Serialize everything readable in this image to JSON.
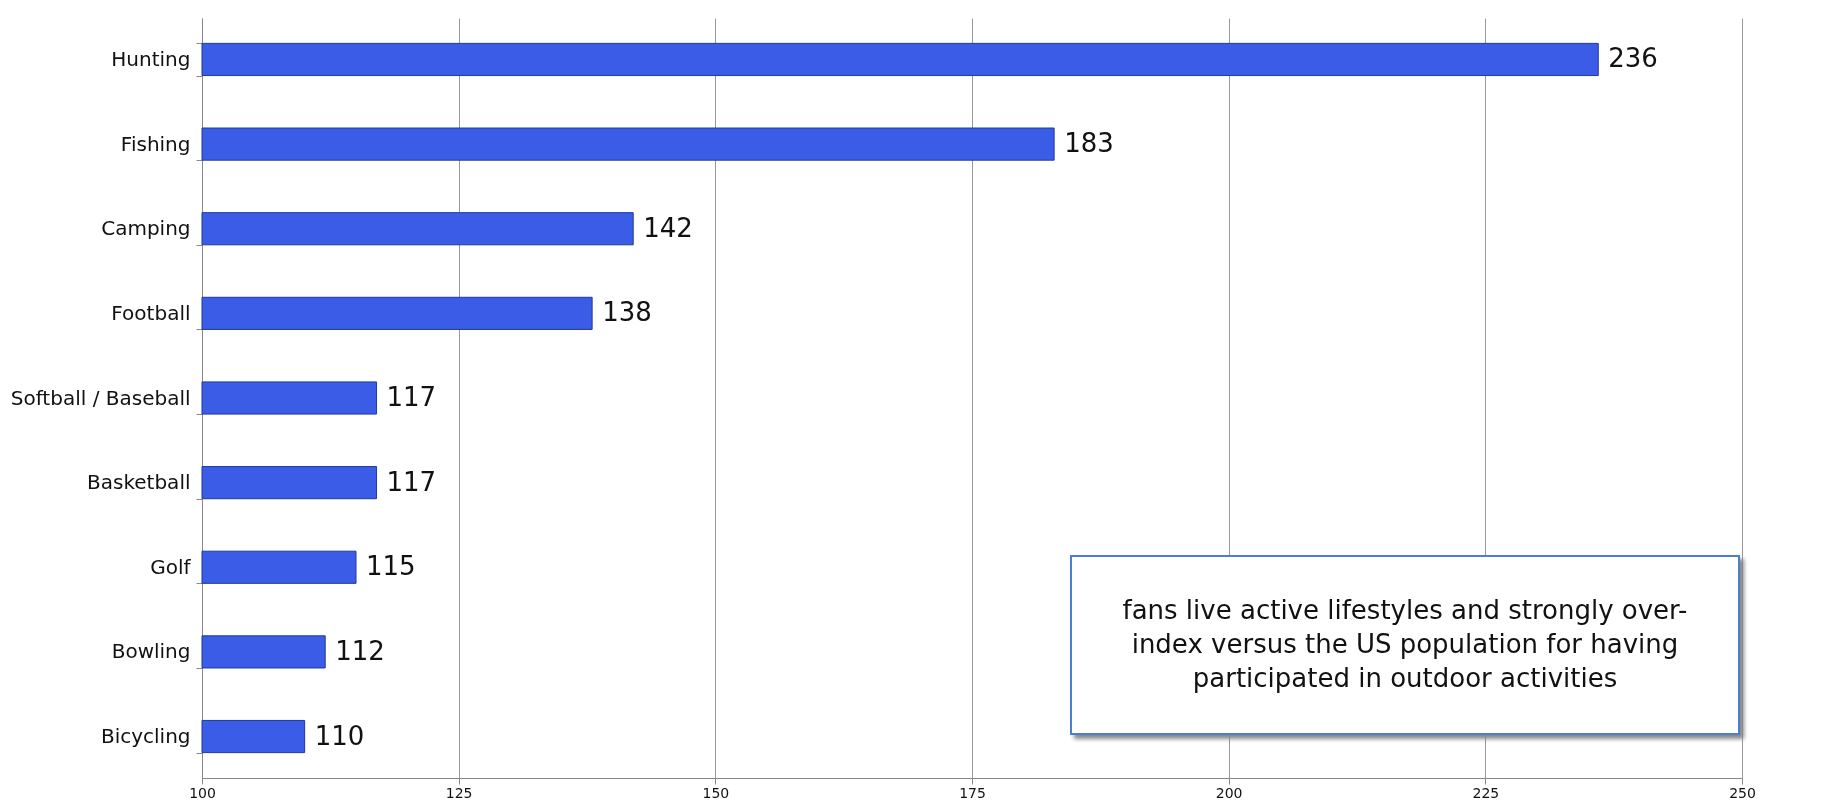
{
  "chart_data": {
    "type": "bar",
    "orientation": "horizontal",
    "categories": [
      "Hunting",
      "Fishing",
      "Camping",
      "Football",
      "Softball / Baseball",
      "Basketball",
      "Golf",
      "Bowling",
      "Bicycling"
    ],
    "values": [
      236,
      183,
      142,
      138,
      117,
      117,
      115,
      112,
      110
    ],
    "color": "#3b5ce6",
    "xlim": [
      100,
      250
    ],
    "xticks": [
      100,
      125,
      150,
      175,
      200,
      225,
      250
    ],
    "grid": "x",
    "data_labels": true,
    "annotations": [
      "fans live active lifestyles and strongly over-index versus the US population for having participated in outdoor activities"
    ]
  }
}
